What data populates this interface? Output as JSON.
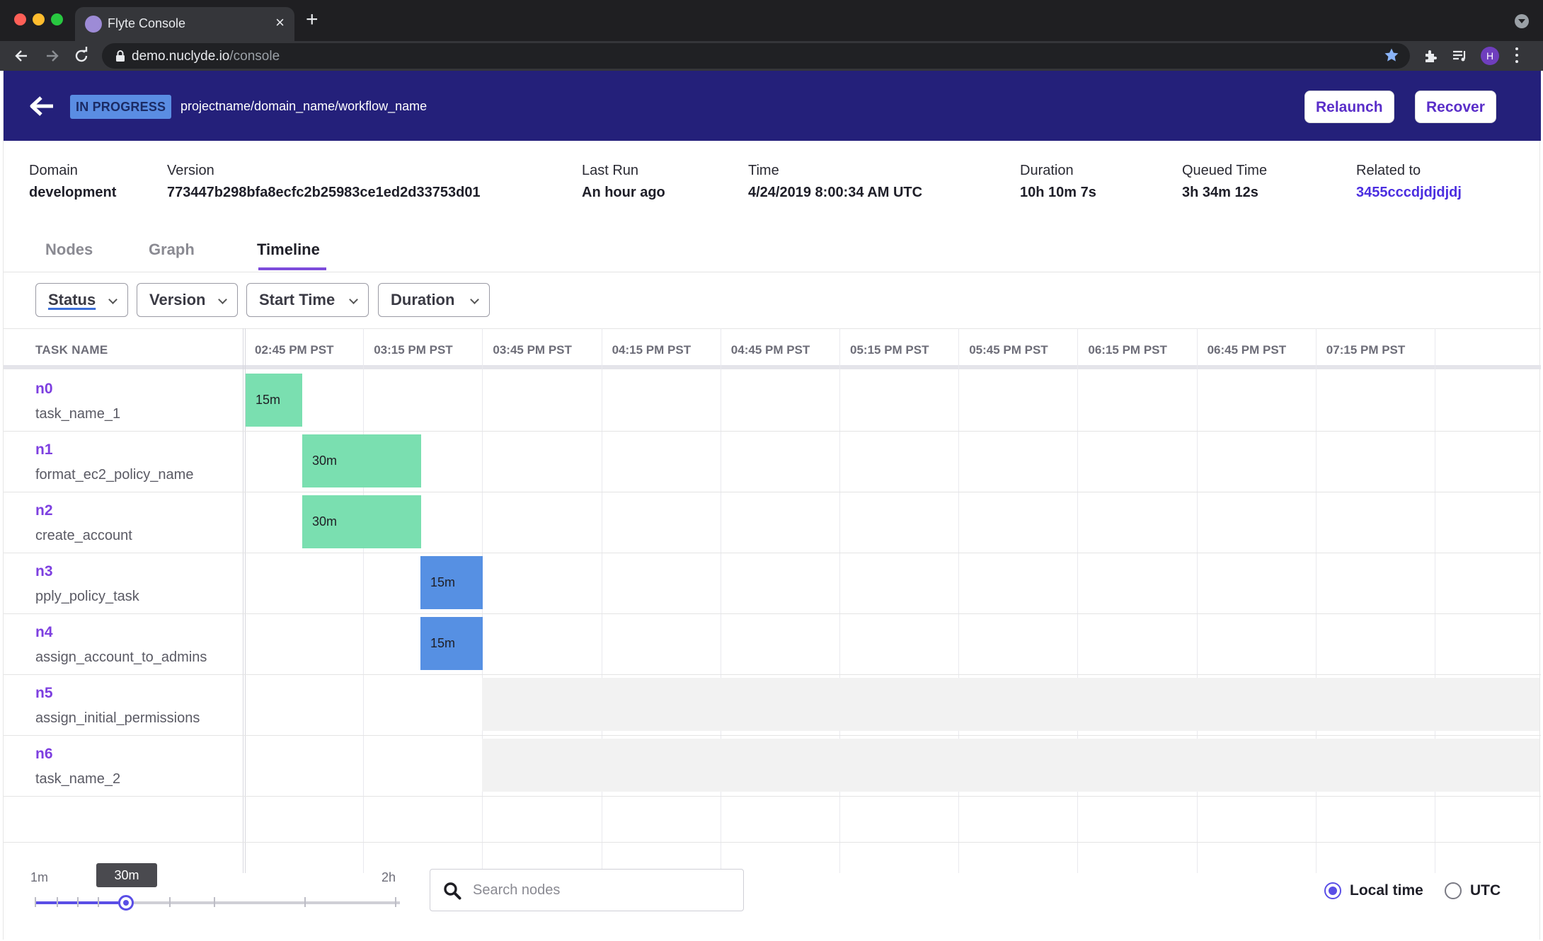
{
  "browser": {
    "tab_title": "Flyte Console",
    "url_host": "demo.nuclyde.io",
    "url_path": "/console",
    "profile_initial": "H"
  },
  "header": {
    "status": "IN PROGRESS",
    "breadcrumb": "projectname/domain_name/workflow_name",
    "relaunch_label": "Relaunch",
    "recover_label": "Recover"
  },
  "meta": [
    {
      "label": "Domain",
      "value": "development"
    },
    {
      "label": "Version",
      "value": "773447b298bfa8ecfc2b25983ce1ed2d33753d01"
    },
    {
      "label": "Last Run",
      "value": "An hour ago"
    },
    {
      "label": "Time",
      "value": "4/24/2019 8:00:34 AM UTC"
    },
    {
      "label": "Duration",
      "value": "10h 10m 7s"
    },
    {
      "label": "Queued Time",
      "value": "3h 34m 12s"
    },
    {
      "label": "Related to",
      "value": "3455cccdjdjdjdj"
    }
  ],
  "tabs": [
    {
      "label": "Nodes"
    },
    {
      "label": "Graph"
    },
    {
      "label": "Timeline"
    }
  ],
  "active_tab": "Timeline",
  "filters": [
    {
      "label": "Status"
    },
    {
      "label": "Version"
    },
    {
      "label": "Start Time"
    },
    {
      "label": "Duration"
    }
  ],
  "timeline": {
    "task_name_header": "TASK NAME",
    "time_labels": [
      "02:45 PM PST",
      "03:15 PM PST",
      "03:45 PM PST",
      "04:15 PM PST",
      "04:45 PM PST",
      "05:15 PM PST",
      "05:45 PM PST",
      "06:15 PM PST",
      "06:45 PM PST",
      "07:15 PM PST"
    ],
    "rows": [
      {
        "id": "n0",
        "name": "task_name_1",
        "bar_label": "15m",
        "status": "succeeded"
      },
      {
        "id": "n1",
        "name": "format_ec2_policy_name",
        "bar_label": "30m",
        "status": "succeeded"
      },
      {
        "id": "n2",
        "name": "create_account",
        "bar_label": "30m",
        "status": "succeeded"
      },
      {
        "id": "n3",
        "name": "pply_policy_task",
        "bar_label": "15m",
        "status": "running"
      },
      {
        "id": "n4",
        "name": "assign_account_to_admins",
        "bar_label": "15m",
        "status": "running"
      },
      {
        "id": "n5",
        "name": "assign_initial_permissions",
        "bar_label": "",
        "status": "pending"
      },
      {
        "id": "n6",
        "name": "task_name_2",
        "bar_label": "",
        "status": "pending"
      }
    ]
  },
  "footer": {
    "zoom_min": "1m",
    "zoom_max": "2h",
    "zoom_value": "30m",
    "search_placeholder": "Search nodes",
    "timezone_options": [
      "Local time",
      "UTC"
    ],
    "selected_timezone": "Local time"
  },
  "colors": {
    "header_bg": "#24207a",
    "accent": "#7d3fe0",
    "succeeded": "#7adfb0",
    "running": "#5690e3",
    "pending": "#f2f2f2"
  }
}
